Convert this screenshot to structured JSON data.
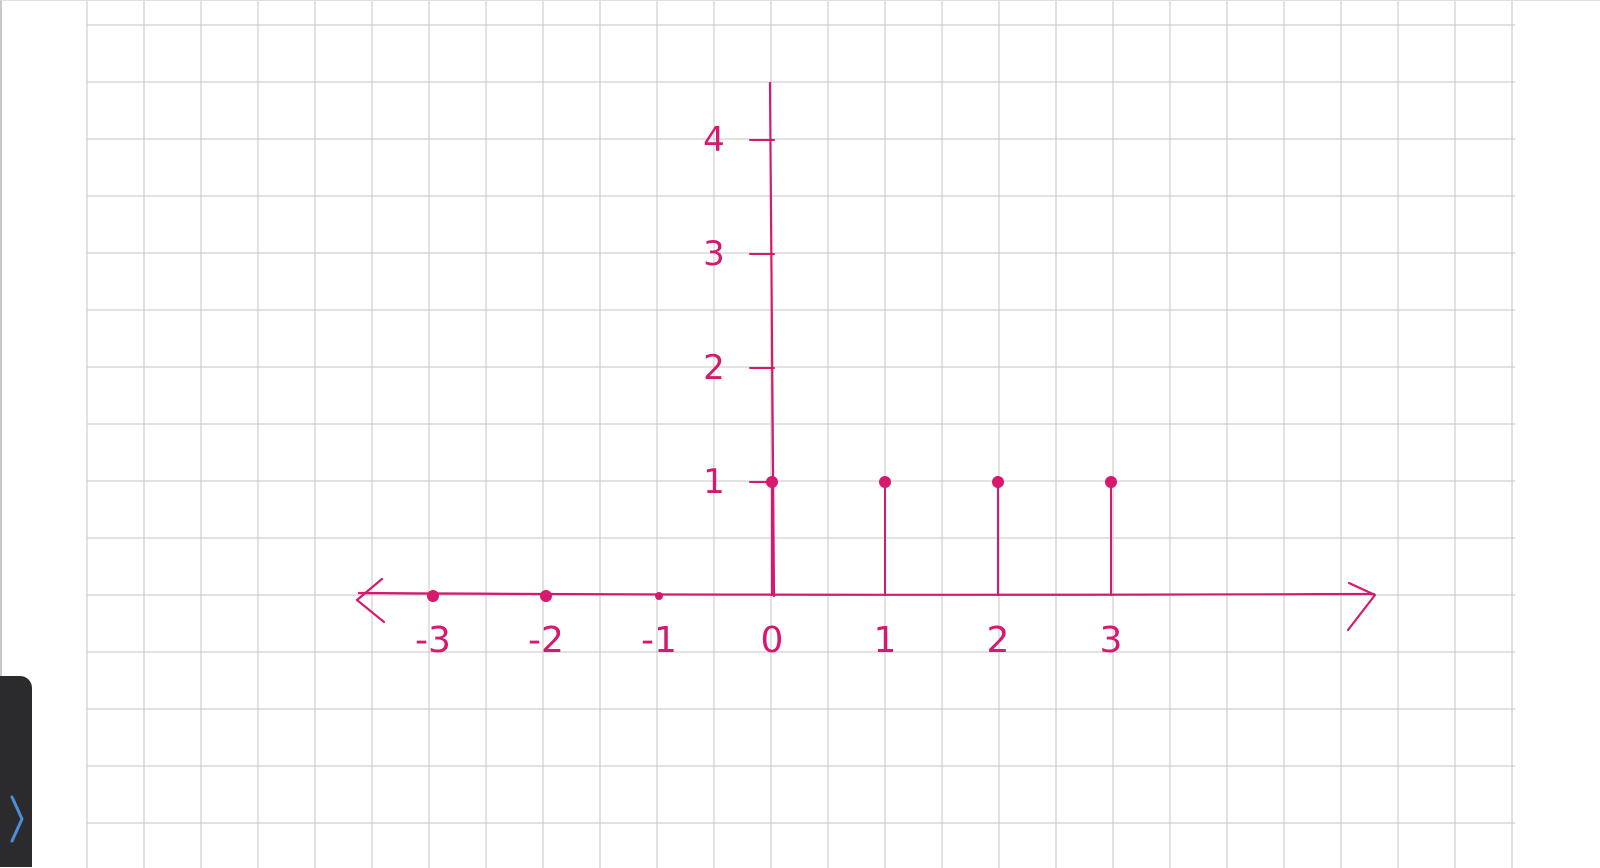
{
  "colors": {
    "ink": "#d6196e",
    "grid": "#c4c4c4",
    "grid_border": "#bdbdbd",
    "page": "#ffffff",
    "side_tab": "#2b2b2d",
    "side_tab_icon": "#4a90d9"
  },
  "side_panel": {
    "toggle_icon": "chevron-right-icon"
  },
  "chart_data": {
    "type": "scatter",
    "style": "stem",
    "grid": true,
    "x_ticks": [
      "-3",
      "-2",
      "-1",
      "0",
      "1",
      "2",
      "3"
    ],
    "y_ticks": [
      "1",
      "2",
      "3",
      "4"
    ],
    "xlim": [
      -3,
      3
    ],
    "ylim": [
      0,
      4
    ],
    "x": [
      -3,
      -2,
      -1,
      0,
      1,
      2,
      3
    ],
    "values": [
      0,
      0,
      0,
      1,
      1,
      1,
      1
    ],
    "x_arrows": "both"
  }
}
